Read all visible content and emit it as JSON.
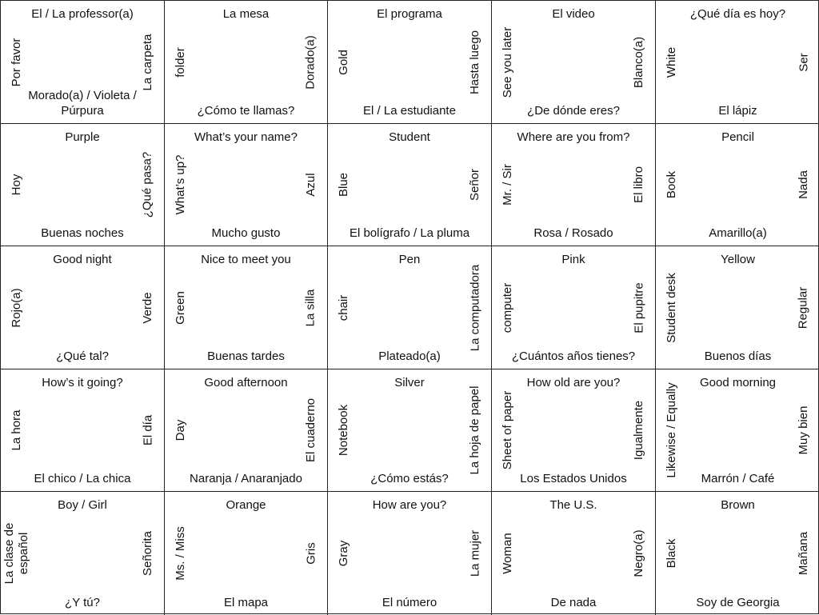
{
  "grid": {
    "rows": [
      [
        {
          "top": "El / La professor(a)",
          "left": "Por favor",
          "right": "La carpeta",
          "bottom": "Morado(a) / Violeta /\nPúrpura"
        },
        {
          "top": "La mesa",
          "left": "folder",
          "right": "Dorado(a)",
          "bottom": "¿Cómo te llamas?"
        },
        {
          "top": "El programa",
          "left": "Gold",
          "right": "Hasta luego",
          "bottom": "El / La estudiante"
        },
        {
          "top": "El video",
          "left": "See you later",
          "right": "Blanco(a)",
          "bottom": "¿De dónde eres?"
        },
        {
          "top": "¿Qué día es hoy?",
          "left": "White",
          "right": "Ser",
          "bottom": "El lápiz"
        }
      ],
      [
        {
          "top": "Purple",
          "left": "Hoy",
          "right": "¿Qué pasa?",
          "bottom": "Buenas noches"
        },
        {
          "top": "What’s your name?",
          "left": "What’s up?",
          "right": "Azul",
          "bottom": "Mucho gusto"
        },
        {
          "top": "Student",
          "left": "Blue",
          "right": "Señor",
          "bottom": "El bolígrafo / La pluma"
        },
        {
          "top": "Where are you from?",
          "left": "Mr. / Sir",
          "right": "El libro",
          "bottom": "Rosa / Rosado"
        },
        {
          "top": "Pencil",
          "left": "Book",
          "right": "Nada",
          "bottom": "Amarillo(a)"
        }
      ],
      [
        {
          "top": "Good night",
          "left": "Rojo(a)",
          "right": "Verde",
          "bottom": "¿Qué tal?"
        },
        {
          "top": "Nice to meet you",
          "left": "Green",
          "right": "La silla",
          "bottom": "Buenas tardes"
        },
        {
          "top": "Pen",
          "left": "chair",
          "right": "La computadora",
          "bottom": "Plateado(a)"
        },
        {
          "top": "Pink",
          "left": "computer",
          "right": "El pupitre",
          "bottom": "¿Cuántos años tienes?"
        },
        {
          "top": "Yellow",
          "left": "Student desk",
          "right": "Regular",
          "bottom": "Buenos días"
        }
      ],
      [
        {
          "top": "How’s it going?",
          "left": "La hora",
          "right": "El día",
          "bottom": "El chico / La chica"
        },
        {
          "top": "Good afternoon",
          "left": "Day",
          "right": "El cuaderno",
          "bottom": "Naranja / Anaranjado"
        },
        {
          "top": "Silver",
          "left": "Notebook",
          "right": "La hoja de papel",
          "bottom": "¿Cómo estás?"
        },
        {
          "top": "How old are you?",
          "left": "Sheet of paper",
          "right": "Igualmente",
          "bottom": "Los Estados Unidos"
        },
        {
          "top": "Good morning",
          "left": "Likewise / Equally",
          "right": "Muy bien",
          "bottom": "Marrón / Café"
        }
      ],
      [
        {
          "top": "Boy / Girl",
          "left": "La clase de\nespañol",
          "right": "Señorita",
          "bottom": "¿Y tú?"
        },
        {
          "top": "Orange",
          "left": "Ms. / Miss",
          "right": "Gris",
          "bottom": "El mapa"
        },
        {
          "top": "How are you?",
          "left": "Gray",
          "right": "La mujer",
          "bottom": "El número"
        },
        {
          "top": "The U.S.",
          "left": "Woman",
          "right": "Negro(a)",
          "bottom": "De nada"
        },
        {
          "top": "Brown",
          "left": "Black",
          "right": "Mañana",
          "bottom": "Soy de Georgia"
        }
      ]
    ]
  }
}
